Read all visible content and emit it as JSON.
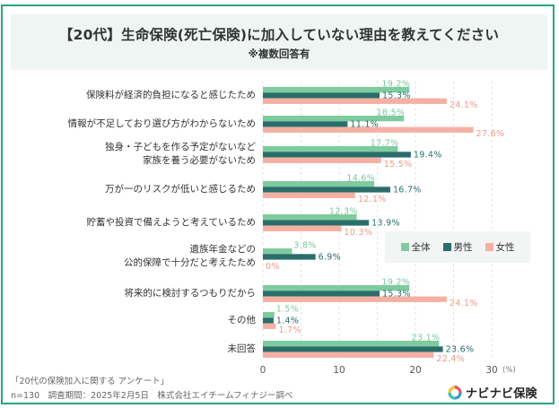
{
  "header": {
    "title": "【20代】生命保険(死亡保険)に加入していない理由を教えてください",
    "subtitle": "※複数回答有"
  },
  "colors": {
    "frame": "#2aa37e",
    "all": "#7ecb9f",
    "male": "#2a6e6a",
    "female": "#f5b0a3"
  },
  "chart_data": {
    "type": "bar",
    "orientation": "horizontal",
    "title": "【20代】生命保険(死亡保険)に加入していない理由を教えてください",
    "subtitle": "※複数回答有",
    "xlabel": "(%)",
    "ylabel": "",
    "xlim": [
      0,
      30
    ],
    "xticks": [
      "0",
      "10",
      "20",
      "30"
    ],
    "unit_label": "(%)",
    "grid": true,
    "legend_position": "right-middle",
    "categories": [
      [
        "保険料が経済的負担になると感じたため"
      ],
      [
        "情報が不足しており選び方がわからないため"
      ],
      [
        "独身・子どもを作る予定がないなど",
        "家族を養う必要がないため"
      ],
      [
        "万が一のリスクが低いと感じるため"
      ],
      [
        "貯蓄や投資で備えようと考えているため"
      ],
      [
        "遺族年金などの",
        "公的保障で十分だと考えたため"
      ],
      [
        "将来的に検討するつもりだから"
      ],
      [
        "その他"
      ],
      [
        "未回答"
      ]
    ],
    "series": [
      {
        "name": "全体",
        "key": "all",
        "values": [
          19.2,
          18.5,
          17.7,
          14.6,
          12.3,
          3.8,
          19.2,
          1.5,
          23.1
        ],
        "labels": [
          "19.2%",
          "18.5%",
          "17.7%",
          "14.6%",
          "12.3%",
          "3.8%",
          "19.2%",
          "1.5%",
          "23.1%"
        ]
      },
      {
        "name": "男性",
        "key": "male",
        "values": [
          15.3,
          11.1,
          19.4,
          16.7,
          13.9,
          6.9,
          15.3,
          1.4,
          23.6
        ],
        "labels": [
          "15.3%",
          "11.1%",
          "19.4%",
          "16.7%",
          "13.9%",
          "6.9%",
          "15.3%",
          "1.4%",
          "23.6%"
        ]
      },
      {
        "name": "女性",
        "key": "female",
        "values": [
          24.1,
          27.6,
          15.5,
          12.1,
          10.3,
          0,
          24.1,
          1.7,
          22.4
        ],
        "labels": [
          "24.1%",
          "27.6%",
          "15.5%",
          "12.1%",
          "10.3%",
          "0%",
          "24.1%",
          "1.7%",
          "22.4%"
        ]
      }
    ]
  },
  "legend": {
    "items": [
      {
        "label": "全体",
        "color": "#7ecb9f"
      },
      {
        "label": "男性",
        "color": "#2a6e6a"
      },
      {
        "label": "女性",
        "color": "#f5b0a3"
      }
    ]
  },
  "footer": {
    "survey_name": "「20代の保険加入に関する アンケート」",
    "meta": "n=130　調査期間：2025年2月5日　株式会社エイチームフィナジー調べ"
  },
  "logo": {
    "text": "ナビナビ保険"
  }
}
